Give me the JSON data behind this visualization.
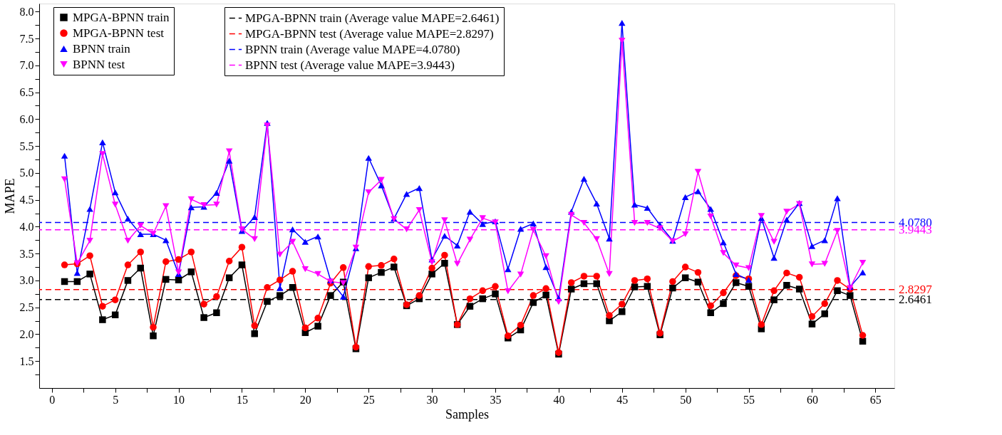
{
  "chart_data": {
    "type": "line",
    "xlabel": "Samples",
    "ylabel": "MAPE",
    "x": [
      1,
      2,
      3,
      4,
      5,
      6,
      7,
      8,
      9,
      10,
      11,
      12,
      13,
      14,
      15,
      16,
      17,
      18,
      19,
      20,
      21,
      22,
      23,
      24,
      25,
      26,
      27,
      28,
      29,
      30,
      31,
      32,
      33,
      34,
      35,
      36,
      37,
      38,
      39,
      40,
      41,
      42,
      43,
      44,
      45,
      46,
      47,
      48,
      49,
      50,
      51,
      52,
      53,
      54,
      55,
      56,
      57,
      58,
      59,
      60,
      61,
      62,
      63,
      64
    ],
    "series": [
      {
        "name": "MPGA-BPNN train",
        "color": "#000000",
        "marker": "square",
        "values": [
          2.98,
          2.98,
          3.12,
          2.27,
          2.36,
          3.0,
          3.23,
          1.97,
          3.02,
          3.01,
          3.16,
          2.31,
          2.4,
          3.05,
          3.29,
          2.01,
          2.61,
          2.72,
          2.87,
          2.03,
          2.15,
          2.72,
          2.97,
          1.73,
          3.05,
          3.15,
          3.25,
          2.53,
          2.66,
          3.12,
          3.32,
          2.18,
          2.52,
          2.66,
          2.75,
          1.93,
          2.08,
          2.59,
          2.73,
          1.63,
          2.84,
          2.94,
          2.94,
          2.25,
          2.42,
          2.88,
          2.89,
          1.99,
          2.86,
          3.05,
          2.97,
          2.4,
          2.57,
          2.96,
          2.89,
          2.1,
          2.64,
          2.91,
          2.84,
          2.19,
          2.38,
          2.81,
          2.72,
          1.87
        ]
      },
      {
        "name": "MPGA-BPNN test",
        "color": "#ff0000",
        "marker": "circle",
        "values": [
          3.29,
          3.31,
          3.46,
          2.52,
          2.64,
          3.29,
          3.53,
          2.13,
          3.35,
          3.39,
          3.53,
          2.56,
          2.7,
          3.36,
          3.62,
          2.16,
          2.87,
          3.01,
          3.17,
          2.12,
          2.3,
          2.95,
          3.24,
          1.76,
          3.26,
          3.28,
          3.4,
          2.55,
          2.72,
          3.23,
          3.47,
          2.18,
          2.66,
          2.81,
          2.89,
          1.97,
          2.17,
          2.72,
          2.85,
          1.66,
          2.96,
          3.08,
          3.08,
          2.35,
          2.56,
          3.0,
          3.03,
          2.02,
          2.98,
          3.25,
          3.15,
          2.53,
          2.77,
          3.09,
          3.03,
          2.18,
          2.81,
          3.14,
          3.06,
          2.33,
          2.57,
          3.0,
          2.84,
          1.98
        ]
      },
      {
        "name": "BPNN train",
        "color": "#0000ff",
        "marker": "triangle",
        "values": [
          5.32,
          3.14,
          4.33,
          5.57,
          4.64,
          4.15,
          3.86,
          3.86,
          3.75,
          3.12,
          4.36,
          4.37,
          4.63,
          5.23,
          3.92,
          4.18,
          5.93,
          2.86,
          3.95,
          3.72,
          3.82,
          3.0,
          2.7,
          3.6,
          5.28,
          4.77,
          4.15,
          4.61,
          4.72,
          3.39,
          3.83,
          3.65,
          4.28,
          4.05,
          4.1,
          3.21,
          3.96,
          4.06,
          3.25,
          2.67,
          4.28,
          4.89,
          4.43,
          3.78,
          7.79,
          4.41,
          4.35,
          4.03,
          3.74,
          4.55,
          4.66,
          4.33,
          3.71,
          3.12,
          3.01,
          4.16,
          3.42,
          4.13,
          4.44,
          3.64,
          3.75,
          4.53,
          2.88,
          3.15
        ]
      },
      {
        "name": "BPNN test",
        "color": "#ff00ff",
        "marker": "triangle-down",
        "values": [
          4.88,
          3.32,
          3.74,
          5.35,
          4.41,
          3.74,
          4.02,
          3.87,
          4.38,
          3.15,
          4.51,
          4.4,
          4.41,
          5.4,
          3.95,
          3.77,
          5.88,
          3.48,
          3.72,
          3.21,
          3.12,
          2.98,
          2.95,
          3.61,
          4.64,
          4.87,
          4.14,
          3.95,
          4.31,
          3.34,
          4.12,
          3.31,
          3.76,
          4.16,
          4.08,
          2.8,
          3.11,
          3.94,
          3.45,
          2.6,
          4.22,
          4.07,
          3.77,
          3.12,
          7.46,
          4.07,
          4.07,
          3.97,
          3.73,
          3.86,
          5.02,
          4.19,
          3.51,
          3.28,
          3.23,
          4.2,
          3.72,
          4.28,
          4.42,
          3.3,
          3.31,
          3.92,
          2.86,
          3.33
        ]
      }
    ],
    "ref_lines": [
      {
        "axis": "y",
        "value": 2.6461,
        "label": "MPGA-BPNN train (Average value MAPE=2.6461)",
        "color": "#000000",
        "line_style": "dashed"
      },
      {
        "axis": "y",
        "value": 2.8297,
        "label": "MPGA-BPNN test (Average value MAPE=2.8297)",
        "color": "#ff0000",
        "line_style": "dashed"
      },
      {
        "axis": "y",
        "value": 4.078,
        "label": "BPNN train (Average value MAPE=4.0780)",
        "color": "#0000ff",
        "line_style": "dashed"
      },
      {
        "axis": "y",
        "value": 3.9443,
        "label": "BPNN test (Average value MAPE=3.9443)",
        "color": "#ff00ff",
        "line_style": "dashed"
      }
    ],
    "annotations": [
      "2.6461",
      "2.8297",
      "4.0780",
      "3.9443"
    ],
    "xlim": [
      -1,
      66.5
    ],
    "ylim": [
      1.0,
      8.15
    ],
    "xticks": [
      0,
      {
        "value": 2.5,
        "label": null
      },
      5,
      {
        "value": 7.5,
        "label": null
      },
      10,
      {
        "value": 12.5,
        "label": null
      },
      15,
      {
        "value": 17.5,
        "label": null
      },
      20,
      {
        "value": 22.5,
        "label": null
      },
      25,
      {
        "value": 27.5,
        "label": null
      },
      30,
      {
        "value": 32.5,
        "label": null
      },
      35,
      {
        "value": 37.5,
        "label": null
      },
      40,
      {
        "value": 42.5,
        "label": null
      },
      45,
      {
        "value": 47.5,
        "label": null
      },
      50,
      {
        "value": 52.5,
        "label": null
      },
      55,
      {
        "value": 57.5,
        "label": null
      },
      60,
      {
        "value": 62.5,
        "label": null
      },
      65
    ],
    "yticks": [
      {
        "value": 1.25,
        "label": null
      },
      {
        "value": 1.5,
        "label": "1.5"
      },
      {
        "value": 1.75,
        "label": null
      },
      {
        "value": 2,
        "label": "2.0"
      },
      {
        "value": 2.25,
        "label": null
      },
      {
        "value": 2.5,
        "label": "2.5"
      },
      {
        "value": 2.75,
        "label": null
      },
      {
        "value": 3,
        "label": "3.0"
      },
      {
        "value": 3.25,
        "label": null
      },
      {
        "value": 3.5,
        "label": "3.5"
      },
      {
        "value": 3.75,
        "label": null
      },
      {
        "value": 4,
        "label": "4.0"
      },
      {
        "value": 4.25,
        "label": null
      },
      {
        "value": 4.5,
        "label": "4.5"
      },
      {
        "value": 4.75,
        "label": null
      },
      {
        "value": 5,
        "label": "5.0"
      },
      {
        "value": 5.25,
        "label": null
      },
      {
        "value": 5.5,
        "label": "5.5"
      },
      {
        "value": 5.75,
        "label": null
      },
      {
        "value": 6,
        "label": "6.0"
      },
      {
        "value": 6.25,
        "label": null
      },
      {
        "value": 6.5,
        "label": "6.5"
      },
      {
        "value": 6.75,
        "label": null
      },
      {
        "value": 7,
        "label": "7.0"
      },
      {
        "value": 7.25,
        "label": null
      },
      {
        "value": 7.5,
        "label": "7.5"
      },
      {
        "value": 7.75,
        "label": null
      },
      {
        "value": 8,
        "label": "8.0"
      }
    ],
    "grid": false,
    "legend": "top left",
    "line_style": "solid"
  }
}
